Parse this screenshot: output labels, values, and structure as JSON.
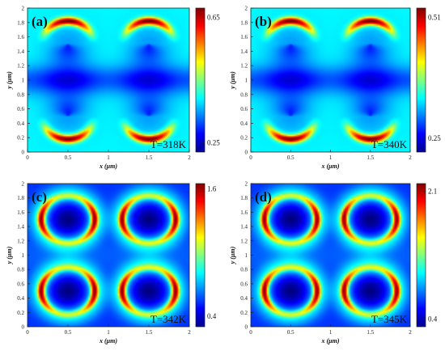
{
  "chart_data": [
    {
      "type": "heatmap",
      "panel_label": "(a)",
      "annotation": "T=318K",
      "xlabel": "x (μm)",
      "ylabel": "y (μm)",
      "xlim": [
        0,
        2
      ],
      "ylim": [
        0,
        2
      ],
      "x_ticks": [
        "0",
        "0.5",
        "1",
        "1.5",
        "2"
      ],
      "y_ticks": [
        "0",
        "0.2",
        "0.4",
        "0.6",
        "0.8",
        "1",
        "1.2",
        "1.4",
        "1.6",
        "1.8",
        "2"
      ],
      "colorbar_range": [
        0.22,
        0.68
      ],
      "colorbar_ticks": [
        "0.25",
        "0.65"
      ],
      "colorbar_tick_values": [
        0.25,
        0.65
      ],
      "pattern": "caps",
      "feature_centers": [
        [
          0.5,
          0.5
        ],
        [
          1.5,
          0.5
        ],
        [
          0.5,
          1.5
        ],
        [
          1.5,
          1.5
        ]
      ]
    },
    {
      "type": "heatmap",
      "panel_label": "(b)",
      "annotation": "T=340K",
      "xlabel": "x (μm)",
      "ylabel": "y (μm)",
      "xlim": [
        0,
        2
      ],
      "ylim": [
        0,
        2
      ],
      "x_ticks": [
        "0",
        "0.5",
        "1",
        "1.5",
        "2"
      ],
      "y_ticks": [
        "0",
        "0.2",
        "0.4",
        "0.6",
        "0.8",
        "1",
        "1.2",
        "1.4",
        "1.6",
        "1.8",
        "2"
      ],
      "colorbar_range": [
        0.22,
        0.53
      ],
      "colorbar_ticks": [
        "0.25",
        "0.51"
      ],
      "colorbar_tick_values": [
        0.25,
        0.51
      ],
      "pattern": "caps",
      "feature_centers": [
        [
          0.5,
          0.5
        ],
        [
          1.5,
          0.5
        ],
        [
          0.5,
          1.5
        ],
        [
          1.5,
          1.5
        ]
      ]
    },
    {
      "type": "heatmap",
      "panel_label": "(c)",
      "annotation": "T=342K",
      "xlabel": "x (μm)",
      "ylabel": "y (μm)",
      "xlim": [
        0,
        2
      ],
      "ylim": [
        0,
        2
      ],
      "x_ticks": [
        "0",
        "0.5",
        "1",
        "1.5",
        "2"
      ],
      "y_ticks": [
        "0",
        "0.2",
        "0.4",
        "0.6",
        "0.8",
        "1",
        "1.2",
        "1.4",
        "1.6",
        "1.8",
        "2"
      ],
      "colorbar_range": [
        0.3,
        1.65
      ],
      "colorbar_ticks": [
        "0.4",
        "1.6"
      ],
      "colorbar_tick_values": [
        0.4,
        1.6
      ],
      "pattern": "rings",
      "feature_centers": [
        [
          0.5,
          0.5
        ],
        [
          1.5,
          0.5
        ],
        [
          0.5,
          1.5
        ],
        [
          1.5,
          1.5
        ]
      ]
    },
    {
      "type": "heatmap",
      "panel_label": "(d)",
      "annotation": "T=345K",
      "xlabel": "x (μm)",
      "ylabel": "y (μm)",
      "xlim": [
        0,
        2
      ],
      "ylim": [
        0,
        2
      ],
      "x_ticks": [
        "0",
        "0.5",
        "1",
        "1.5",
        "2"
      ],
      "y_ticks": [
        "0",
        "0.2",
        "0.4",
        "0.6",
        "0.8",
        "1",
        "1.2",
        "1.4",
        "1.6",
        "1.8",
        "2"
      ],
      "colorbar_range": [
        0.3,
        2.2
      ],
      "colorbar_ticks": [
        "0.4",
        "2.1"
      ],
      "colorbar_tick_values": [
        0.4,
        2.1
      ],
      "pattern": "rings",
      "feature_centers": [
        [
          0.5,
          0.5
        ],
        [
          1.5,
          0.5
        ],
        [
          0.5,
          1.5
        ],
        [
          1.5,
          1.5
        ]
      ]
    }
  ]
}
